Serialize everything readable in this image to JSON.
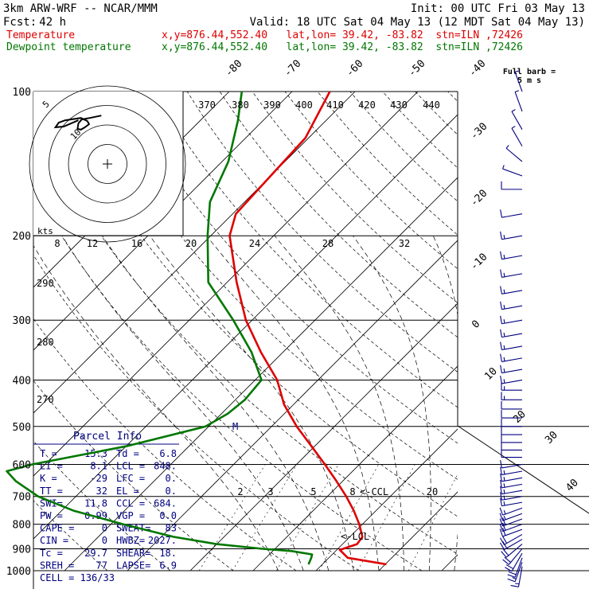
{
  "header": {
    "model": "3km ARW-WRF -- NCAR/MMM",
    "init": "Init: 00 UTC Fri 03 May 13",
    "fcst_label": "Fcst:",
    "fcst_value": "42 h",
    "valid": "Valid: 18 UTC Sat 04 May 13 (12 MDT Sat 04 May 13)",
    "temp_label": "Temperature",
    "temp_loc": "x,y=876.44,552.40   lat,lon= 39.42, -83.82  stn=ILN ,72426",
    "dew_label": "Dewpoint temperature",
    "dew_loc": "x,y=876.44,552.40   lat,lon= 39.42, -83.82  stn=ILN ,72426"
  },
  "colors": {
    "temperature": "#dd0000",
    "dewpoint": "#007700",
    "parcel_text": "#000080",
    "wind_barbs": "#000080"
  },
  "chart_data": {
    "type": "line",
    "title": "",
    "pressure_levels": [
      "100",
      "200",
      "300",
      "400",
      "500",
      "600",
      "700",
      "800",
      "900",
      "1000"
    ],
    "isotherm_labels": [
      "-80",
      "-70",
      "-60",
      "-50",
      "-40",
      "-30",
      "-20",
      "-10",
      "0",
      "10",
      "20",
      "30",
      "40"
    ],
    "theta_labels": [
      "370",
      "380",
      "390",
      "400",
      "410",
      "420",
      "430",
      "440"
    ],
    "theta_labels_lower": [
      "290",
      "280",
      "270"
    ],
    "mixing_ratio_labels": [
      "2",
      "3",
      "5",
      "8",
      "20"
    ],
    "hodograph": {
      "units": "kts",
      "speed_axis_labels": [
        "8",
        "12",
        "16",
        "20",
        "24",
        "28",
        "32"
      ],
      "rings": [
        "5",
        "10"
      ],
      "trace_u": [
        -1.0,
        0.4,
        1.4,
        1.8,
        1.9,
        1.5,
        1.0,
        0.5,
        0.7,
        1.5,
        3.4,
        4.2,
        4.6,
        3.6,
        1.8
      ],
      "trace_v": [
        6.2,
        5.9,
        5.7,
        5.2,
        4.5,
        4.4,
        4.7,
        5.1,
        5.5,
        5.9,
        5.6,
        5.3,
        4.7,
        4.8,
        5.6
      ]
    },
    "series": [
      {
        "name": "Temperature",
        "pressure": [
          970,
          940,
          905,
          880,
          850,
          800,
          750,
          700,
          650,
          600,
          550,
          500,
          450,
          400,
          350,
          300,
          250,
          200,
          180,
          150,
          125,
          100
        ],
        "temperature_c": [
          20.2,
          13.0,
          10.5,
          12.3,
          12.0,
          9.5,
          6.5,
          3.0,
          -1.0,
          -5.5,
          -10.5,
          -16.0,
          -21.5,
          -26.5,
          -33.5,
          -41.0,
          -48.5,
          -57.0,
          -59.5,
          -60.0,
          -60.5,
          -64.0
        ]
      },
      {
        "name": "Dewpoint temperature",
        "pressure": [
          970,
          940,
          925,
          910,
          900,
          880,
          850,
          800,
          750,
          700,
          650,
          620,
          600,
          550,
          500,
          470,
          440,
          400,
          350,
          300,
          250,
          200,
          170,
          140,
          115,
          100
        ],
        "temperature_c": [
          7.8,
          7.2,
          6.8,
          3.0,
          -2.0,
          -10.0,
          -18.0,
          -28.0,
          -38.0,
          -46.0,
          -52.0,
          -55.0,
          -52.0,
          -40.0,
          -30.5,
          -29.0,
          -28.5,
          -29.0,
          -35.0,
          -43.0,
          -53.0,
          -60.5,
          -65.5,
          -69.0,
          -74.0,
          -78.0
        ]
      }
    ],
    "wind_profile": {
      "units": "kt",
      "full_barb_label": "Full barb =",
      "full_barb_units": "5 m s",
      "pressure": [
        980,
        960,
        940,
        920,
        900,
        880,
        860,
        840,
        820,
        800,
        780,
        760,
        740,
        720,
        700,
        680,
        660,
        640,
        620,
        600,
        580,
        560,
        540,
        520,
        500,
        480,
        460,
        440,
        420,
        400,
        380,
        360,
        340,
        320,
        300,
        280,
        260,
        240,
        220,
        200,
        180,
        160,
        150,
        140,
        130,
        120,
        110,
        100
      ],
      "speed_kt": [
        16,
        16,
        18,
        18,
        20,
        20,
        20,
        20,
        18,
        18,
        18,
        16,
        16,
        16,
        16,
        14,
        14,
        14,
        14,
        12,
        12,
        12,
        12,
        12,
        10,
        12,
        12,
        14,
        14,
        14,
        14,
        16,
        16,
        16,
        16,
        16,
        16,
        16,
        14,
        14,
        12,
        8,
        6,
        6,
        4,
        4,
        4,
        4
      ],
      "direction_deg": [
        190,
        200,
        200,
        210,
        220,
        230,
        240,
        240,
        250,
        250,
        250,
        250,
        250,
        260,
        260,
        260,
        260,
        260,
        260,
        260,
        270,
        270,
        270,
        270,
        270,
        270,
        270,
        270,
        270,
        260,
        260,
        260,
        260,
        260,
        260,
        260,
        260,
        260,
        260,
        260,
        260,
        270,
        290,
        310,
        330,
        330,
        340,
        340
      ]
    }
  },
  "annotations": {
    "lcl": "<-LCL",
    "ccl": "<-CCL",
    "m_marker": "M"
  },
  "parcel_info": {
    "title": "Parcel Info",
    "rows": [
      [
        "T  =",
        "15.3",
        "Td =",
        "6.8"
      ],
      [
        "LI =",
        "8.1",
        "LCL =",
        "848."
      ],
      [
        "K  =",
        "-29",
        "LFC =",
        "0."
      ],
      [
        "TT =",
        "32",
        "EL  =",
        "0."
      ],
      [
        "SWI=",
        "11.8",
        "CCL =",
        "684."
      ],
      [
        "PW =",
        "0.99",
        "VGP =",
        "0.0"
      ],
      [
        "CAPE =",
        "0",
        "SWEAT=",
        "83"
      ],
      [
        "CIN  =",
        "0",
        "HWBZ=",
        "2027."
      ],
      [
        "Tc =",
        "29.7",
        "SHEAR=",
        "18."
      ],
      [
        "SREH =",
        "77",
        "LAPSE=",
        "6.9"
      ]
    ],
    "cell": "CELL = 136/33"
  }
}
